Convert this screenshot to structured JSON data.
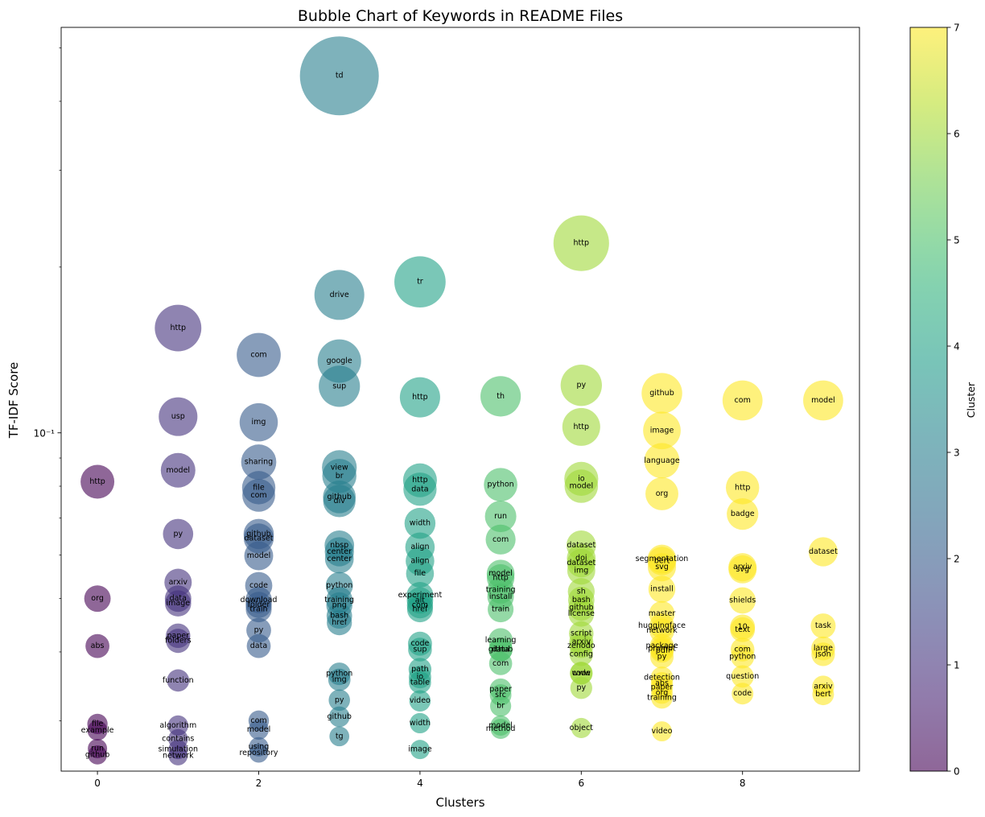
{
  "chart_data": {
    "type": "scatter",
    "title": "Bubble Chart of Keywords in README Files",
    "xlabel": "Clusters",
    "ylabel": "TF-IDF Score",
    "xlim": [
      -0.45,
      9.45
    ],
    "ylim": [
      0.0243,
      0.545
    ],
    "yscale": "log",
    "x_ticks": [
      0,
      2,
      4,
      6,
      8
    ],
    "y_tick_label": "10⁻¹",
    "colorbar": {
      "label": "Cluster",
      "min": 0,
      "max": 7,
      "ticks": [
        "0",
        "1",
        "2",
        "3",
        "4",
        "5",
        "6",
        "7"
      ],
      "colormap": "viridis",
      "alpha": 0.6
    },
    "points": [
      {
        "x": 0,
        "y": 0.0815,
        "label": "http",
        "c": 0
      },
      {
        "x": 0,
        "y": 0.05,
        "label": "org",
        "c": 0
      },
      {
        "x": 0,
        "y": 0.041,
        "label": "abs",
        "c": 0
      },
      {
        "x": 0,
        "y": 0.0296,
        "label": "file",
        "c": 0
      },
      {
        "x": 0,
        "y": 0.0288,
        "label": "example",
        "c": 0
      },
      {
        "x": 0,
        "y": 0.0267,
        "label": "run",
        "c": 0
      },
      {
        "x": 0,
        "y": 0.026,
        "label": "github",
        "c": 0
      },
      {
        "x": 1,
        "y": 0.155,
        "label": "http",
        "c": 1
      },
      {
        "x": 1,
        "y": 0.107,
        "label": "usp",
        "c": 1
      },
      {
        "x": 1,
        "y": 0.0855,
        "label": "model",
        "c": 1
      },
      {
        "x": 1,
        "y": 0.0655,
        "label": "py",
        "c": 1
      },
      {
        "x": 1,
        "y": 0.0535,
        "label": "arxiv",
        "c": 1
      },
      {
        "x": 1,
        "y": 0.05,
        "label": "data",
        "c": 1
      },
      {
        "x": 1,
        "y": 0.049,
        "label": "image",
        "c": 1
      },
      {
        "x": 1,
        "y": 0.0428,
        "label": "paper",
        "c": 1
      },
      {
        "x": 1,
        "y": 0.0419,
        "label": "folders",
        "c": 1
      },
      {
        "x": 1,
        "y": 0.0355,
        "label": "function",
        "c": 1
      },
      {
        "x": 1,
        "y": 0.0294,
        "label": "algorithm",
        "c": 1
      },
      {
        "x": 1,
        "y": 0.0278,
        "label": "contains",
        "c": 1
      },
      {
        "x": 1,
        "y": 0.0266,
        "label": "simulation",
        "c": 1
      },
      {
        "x": 1,
        "y": 0.0259,
        "label": "network",
        "c": 1
      },
      {
        "x": 2,
        "y": 0.1385,
        "label": "com",
        "c": 2
      },
      {
        "x": 2,
        "y": 0.1045,
        "label": "img",
        "c": 2
      },
      {
        "x": 2,
        "y": 0.0885,
        "label": "sharing",
        "c": 2
      },
      {
        "x": 2,
        "y": 0.0795,
        "label": "file",
        "c": 2
      },
      {
        "x": 2,
        "y": 0.077,
        "label": "com",
        "c": 2
      },
      {
        "x": 2,
        "y": 0.0655,
        "label": "github",
        "c": 2
      },
      {
        "x": 2,
        "y": 0.0643,
        "label": "dataset",
        "c": 2
      },
      {
        "x": 2,
        "y": 0.0598,
        "label": "model",
        "c": 2
      },
      {
        "x": 2,
        "y": 0.0528,
        "label": "code",
        "c": 2
      },
      {
        "x": 2,
        "y": 0.0497,
        "label": "download",
        "c": 2
      },
      {
        "x": 2,
        "y": 0.0487,
        "label": "folder",
        "c": 2
      },
      {
        "x": 2,
        "y": 0.0478,
        "label": "train",
        "c": 2
      },
      {
        "x": 2,
        "y": 0.0438,
        "label": "py",
        "c": 2
      },
      {
        "x": 2,
        "y": 0.041,
        "label": "data",
        "c": 2
      },
      {
        "x": 2,
        "y": 0.03,
        "label": "com",
        "c": 2
      },
      {
        "x": 2,
        "y": 0.0289,
        "label": "model",
        "c": 2
      },
      {
        "x": 2,
        "y": 0.0269,
        "label": "using",
        "c": 2
      },
      {
        "x": 2,
        "y": 0.0262,
        "label": "repository",
        "c": 2
      },
      {
        "x": 3,
        "y": 0.445,
        "label": "td",
        "c": 3
      },
      {
        "x": 3,
        "y": 0.178,
        "label": "drive",
        "c": 3
      },
      {
        "x": 3,
        "y": 0.135,
        "label": "google",
        "c": 3
      },
      {
        "x": 3,
        "y": 0.1215,
        "label": "sup",
        "c": 3
      },
      {
        "x": 3,
        "y": 0.0865,
        "label": "view",
        "c": 3
      },
      {
        "x": 3,
        "y": 0.0835,
        "label": "br",
        "c": 3
      },
      {
        "x": 3,
        "y": 0.0765,
        "label": "github",
        "c": 3
      },
      {
        "x": 3,
        "y": 0.0752,
        "label": "div",
        "c": 3
      },
      {
        "x": 3,
        "y": 0.0625,
        "label": "nbsp",
        "c": 3
      },
      {
        "x": 3,
        "y": 0.0608,
        "label": "center",
        "c": 3
      },
      {
        "x": 3,
        "y": 0.059,
        "label": "center",
        "c": 3
      },
      {
        "x": 3,
        "y": 0.0528,
        "label": "python",
        "c": 3
      },
      {
        "x": 3,
        "y": 0.0497,
        "label": "training",
        "c": 3
      },
      {
        "x": 3,
        "y": 0.0486,
        "label": "png",
        "c": 3
      },
      {
        "x": 3,
        "y": 0.0465,
        "label": "bash",
        "c": 3
      },
      {
        "x": 3,
        "y": 0.0452,
        "label": "href",
        "c": 3
      },
      {
        "x": 3,
        "y": 0.0365,
        "label": "python",
        "c": 3
      },
      {
        "x": 3,
        "y": 0.0356,
        "label": "img",
        "c": 3
      },
      {
        "x": 3,
        "y": 0.0327,
        "label": "py",
        "c": 3
      },
      {
        "x": 3,
        "y": 0.0305,
        "label": "github",
        "c": 3
      },
      {
        "x": 3,
        "y": 0.0281,
        "label": "tg",
        "c": 3
      },
      {
        "x": 4,
        "y": 0.188,
        "label": "tr",
        "c": 4
      },
      {
        "x": 4,
        "y": 0.116,
        "label": "http",
        "c": 4
      },
      {
        "x": 4,
        "y": 0.082,
        "label": "http",
        "c": 4
      },
      {
        "x": 4,
        "y": 0.079,
        "label": "data",
        "c": 4
      },
      {
        "x": 4,
        "y": 0.0685,
        "label": "width",
        "c": 4
      },
      {
        "x": 4,
        "y": 0.062,
        "label": "align",
        "c": 4
      },
      {
        "x": 4,
        "y": 0.0585,
        "label": "align",
        "c": 4
      },
      {
        "x": 4,
        "y": 0.0555,
        "label": "file",
        "c": 4
      },
      {
        "x": 4,
        "y": 0.0507,
        "label": "experiment",
        "c": 4
      },
      {
        "x": 4,
        "y": 0.0496,
        "label": "alt",
        "c": 4
      },
      {
        "x": 4,
        "y": 0.0486,
        "label": "com",
        "c": 4
      },
      {
        "x": 4,
        "y": 0.0478,
        "label": "href",
        "c": 4
      },
      {
        "x": 4,
        "y": 0.0414,
        "label": "code",
        "c": 4
      },
      {
        "x": 4,
        "y": 0.0404,
        "label": "sup",
        "c": 4
      },
      {
        "x": 4,
        "y": 0.0372,
        "label": "path",
        "c": 4
      },
      {
        "x": 4,
        "y": 0.036,
        "label": "io",
        "c": 4
      },
      {
        "x": 4,
        "y": 0.0352,
        "label": "table",
        "c": 4
      },
      {
        "x": 4,
        "y": 0.0326,
        "label": "video",
        "c": 4
      },
      {
        "x": 4,
        "y": 0.0297,
        "label": "width",
        "c": 4
      },
      {
        "x": 4,
        "y": 0.0266,
        "label": "image",
        "c": 4
      },
      {
        "x": 5,
        "y": 0.1165,
        "label": "th",
        "c": 5
      },
      {
        "x": 5,
        "y": 0.0805,
        "label": "python",
        "c": 5
      },
      {
        "x": 5,
        "y": 0.0705,
        "label": "run",
        "c": 5
      },
      {
        "x": 5,
        "y": 0.064,
        "label": "com",
        "c": 5
      },
      {
        "x": 5,
        "y": 0.0555,
        "label": "model",
        "c": 5
      },
      {
        "x": 5,
        "y": 0.0545,
        "label": "http",
        "c": 5
      },
      {
        "x": 5,
        "y": 0.0518,
        "label": "training",
        "c": 5
      },
      {
        "x": 5,
        "y": 0.0504,
        "label": "install",
        "c": 5
      },
      {
        "x": 5,
        "y": 0.0478,
        "label": "train",
        "c": 5
      },
      {
        "x": 5,
        "y": 0.042,
        "label": "learning",
        "c": 5
      },
      {
        "x": 5,
        "y": 0.0404,
        "label": "github",
        "c": 5
      },
      {
        "x": 5,
        "y": 0.0404,
        "label": "data",
        "c": 5
      },
      {
        "x": 5,
        "y": 0.0381,
        "label": "com",
        "c": 5
      },
      {
        "x": 5,
        "y": 0.0342,
        "label": "paper",
        "c": 5
      },
      {
        "x": 5,
        "y": 0.0334,
        "label": "src",
        "c": 5
      },
      {
        "x": 5,
        "y": 0.0319,
        "label": "br",
        "c": 5
      },
      {
        "x": 5,
        "y": 0.0294,
        "label": "model",
        "c": 5
      },
      {
        "x": 5,
        "y": 0.029,
        "label": "method",
        "c": 5
      },
      {
        "x": 6,
        "y": 0.221,
        "label": "http",
        "c": 6
      },
      {
        "x": 6,
        "y": 0.122,
        "label": "py",
        "c": 6
      },
      {
        "x": 6,
        "y": 0.1025,
        "label": "http",
        "c": 6
      },
      {
        "x": 6,
        "y": 0.0825,
        "label": "io",
        "c": 6
      },
      {
        "x": 6,
        "y": 0.08,
        "label": "model",
        "c": 6
      },
      {
        "x": 6,
        "y": 0.0625,
        "label": "dataset",
        "c": 6
      },
      {
        "x": 6,
        "y": 0.0592,
        "label": "doi",
        "c": 6
      },
      {
        "x": 6,
        "y": 0.058,
        "label": "dataset",
        "c": 6
      },
      {
        "x": 6,
        "y": 0.0562,
        "label": "img",
        "c": 6
      },
      {
        "x": 6,
        "y": 0.0515,
        "label": "sh",
        "c": 6
      },
      {
        "x": 6,
        "y": 0.0497,
        "label": "bash",
        "c": 6
      },
      {
        "x": 6,
        "y": 0.0481,
        "label": "github",
        "c": 6
      },
      {
        "x": 6,
        "y": 0.0469,
        "label": "license",
        "c": 6
      },
      {
        "x": 6,
        "y": 0.0432,
        "label": "script",
        "c": 6
      },
      {
        "x": 6,
        "y": 0.0417,
        "label": "arxiv",
        "c": 6
      },
      {
        "x": 6,
        "y": 0.041,
        "label": "zenodo",
        "c": 6
      },
      {
        "x": 6,
        "y": 0.0396,
        "label": "config",
        "c": 6
      },
      {
        "x": 6,
        "y": 0.0366,
        "label": "code",
        "c": 6
      },
      {
        "x": 6,
        "y": 0.0366,
        "label": "www",
        "c": 6
      },
      {
        "x": 6,
        "y": 0.0344,
        "label": "py",
        "c": 6
      },
      {
        "x": 6,
        "y": 0.0291,
        "label": "object",
        "c": 6
      },
      {
        "x": 7,
        "y": 0.118,
        "label": "github",
        "c": 7
      },
      {
        "x": 7,
        "y": 0.101,
        "label": "image",
        "c": 7
      },
      {
        "x": 7,
        "y": 0.089,
        "label": "language",
        "c": 7
      },
      {
        "x": 7,
        "y": 0.0775,
        "label": "org",
        "c": 7
      },
      {
        "x": 7,
        "y": 0.059,
        "label": "segmentation",
        "c": 7
      },
      {
        "x": 7,
        "y": 0.0585,
        "label": "bert",
        "c": 7
      },
      {
        "x": 7,
        "y": 0.057,
        "label": "svg",
        "c": 7
      },
      {
        "x": 7,
        "y": 0.052,
        "label": "install",
        "c": 7
      },
      {
        "x": 7,
        "y": 0.0469,
        "label": "master",
        "c": 7
      },
      {
        "x": 7,
        "y": 0.0446,
        "label": "huggingface",
        "c": 7
      },
      {
        "x": 7,
        "y": 0.0437,
        "label": "network",
        "c": 7
      },
      {
        "x": 7,
        "y": 0.041,
        "label": "package",
        "c": 7
      },
      {
        "x": 7,
        "y": 0.0405,
        "label": "prompt",
        "c": 7
      },
      {
        "x": 7,
        "y": 0.0402,
        "label": "pdf",
        "c": 7
      },
      {
        "x": 7,
        "y": 0.0392,
        "label": "py",
        "c": 7
      },
      {
        "x": 7,
        "y": 0.0359,
        "label": "detection",
        "c": 7
      },
      {
        "x": 7,
        "y": 0.0351,
        "label": "abs",
        "c": 7
      },
      {
        "x": 7,
        "y": 0.0345,
        "label": "paper",
        "c": 7
      },
      {
        "x": 7,
        "y": 0.0337,
        "label": "org",
        "c": 7
      },
      {
        "x": 7,
        "y": 0.033,
        "label": "training",
        "c": 7
      },
      {
        "x": 7,
        "y": 0.0287,
        "label": "video",
        "c": 7
      },
      {
        "x": 8,
        "y": 0.1145,
        "label": "com",
        "c": 7
      },
      {
        "x": 8,
        "y": 0.0795,
        "label": "http",
        "c": 7
      },
      {
        "x": 8,
        "y": 0.0712,
        "label": "badge",
        "c": 7
      },
      {
        "x": 8,
        "y": 0.057,
        "label": "arxiv",
        "c": 7
      },
      {
        "x": 8,
        "y": 0.0565,
        "label": "svg",
        "c": 7
      },
      {
        "x": 8,
        "y": 0.0496,
        "label": "shields",
        "c": 7
      },
      {
        "x": 8,
        "y": 0.0444,
        "label": "10",
        "c": 7
      },
      {
        "x": 8,
        "y": 0.0439,
        "label": "text",
        "c": 7
      },
      {
        "x": 8,
        "y": 0.0404,
        "label": "com",
        "c": 7
      },
      {
        "x": 8,
        "y": 0.0392,
        "label": "python",
        "c": 7
      },
      {
        "x": 8,
        "y": 0.0361,
        "label": "question",
        "c": 7
      },
      {
        "x": 8,
        "y": 0.0336,
        "label": "code",
        "c": 7
      },
      {
        "x": 9,
        "y": 0.1145,
        "label": "model",
        "c": 7
      },
      {
        "x": 9,
        "y": 0.0608,
        "label": "dataset",
        "c": 7
      },
      {
        "x": 9,
        "y": 0.0446,
        "label": "task",
        "c": 7
      },
      {
        "x": 9,
        "y": 0.0406,
        "label": "large",
        "c": 7
      },
      {
        "x": 9,
        "y": 0.0396,
        "label": "json",
        "c": 7
      },
      {
        "x": 9,
        "y": 0.0346,
        "label": "arxiv",
        "c": 7
      },
      {
        "x": 9,
        "y": 0.0335,
        "label": "bert",
        "c": 7
      }
    ]
  }
}
